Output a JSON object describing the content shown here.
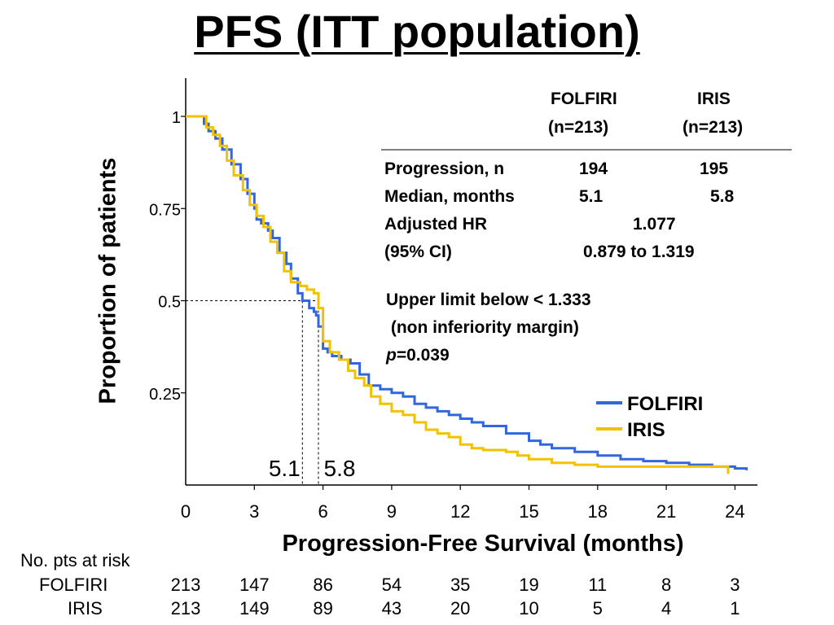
{
  "title": "PFS (ITT population)",
  "chart_data": {
    "type": "line",
    "step": true,
    "xlabel": "Progression-Free Survival  (months)",
    "ylabel": "Proportion of patients",
    "xlim": [
      0,
      25
    ],
    "ylim": [
      0,
      1.1
    ],
    "x_ticks": [
      0,
      3,
      6,
      9,
      12,
      15,
      18,
      21,
      24
    ],
    "y_ticks": [
      {
        "v": 0.25,
        "label": "0.25"
      },
      {
        "v": 0.5,
        "label": "0.5"
      },
      {
        "v": 0.75,
        "label": "0.75"
      },
      {
        "v": 1,
        "label": "1"
      }
    ],
    "origin_label": "0",
    "grid": false,
    "legend": "bottom-right",
    "series": [
      {
        "name": "FOLFIRI",
        "color": "#3366dd",
        "x": [
          0,
          0.8,
          1.0,
          1.3,
          1.6,
          2.0,
          2.4,
          2.7,
          3.0,
          3.1,
          3.3,
          3.6,
          3.8,
          4.1,
          4.4,
          4.6,
          4.9,
          5.1,
          5.4,
          5.6,
          5.7,
          5.8,
          6.0,
          6.2,
          6.4,
          6.8,
          7.2,
          7.6,
          8.0,
          8.5,
          9.0,
          9.5,
          10.0,
          10.5,
          11.0,
          11.5,
          12.0,
          12.5,
          13.0,
          14.0,
          15.0,
          15.5,
          16.0,
          17.0,
          18.0,
          19.0,
          20.0,
          21.0,
          22.0,
          23.0,
          24.0,
          24.5
        ],
        "y": [
          1.0,
          0.98,
          0.96,
          0.94,
          0.91,
          0.87,
          0.83,
          0.79,
          0.75,
          0.72,
          0.71,
          0.69,
          0.67,
          0.63,
          0.6,
          0.56,
          0.52,
          0.5,
          0.48,
          0.47,
          0.46,
          0.43,
          0.37,
          0.36,
          0.35,
          0.34,
          0.33,
          0.3,
          0.27,
          0.26,
          0.25,
          0.24,
          0.22,
          0.21,
          0.2,
          0.19,
          0.18,
          0.17,
          0.16,
          0.14,
          0.12,
          0.11,
          0.1,
          0.09,
          0.08,
          0.07,
          0.065,
          0.06,
          0.055,
          0.05,
          0.045,
          0.04
        ]
      },
      {
        "name": "IRIS",
        "color": "#f2c200",
        "x": [
          0,
          0.9,
          1.2,
          1.5,
          1.8,
          2.1,
          2.5,
          2.8,
          3.1,
          3.4,
          3.7,
          4.0,
          4.3,
          4.6,
          5.0,
          5.3,
          5.6,
          5.8,
          6.0,
          6.3,
          6.7,
          7.1,
          7.4,
          7.8,
          8.1,
          8.5,
          9.0,
          9.5,
          10.0,
          10.5,
          11.0,
          11.5,
          12.0,
          12.5,
          13.0,
          14.0,
          14.5,
          15.0,
          16.0,
          17.0,
          18.0,
          19.0,
          20.0,
          21.0,
          22.0,
          23.0,
          23.7
        ],
        "y": [
          1.0,
          0.97,
          0.95,
          0.92,
          0.88,
          0.84,
          0.8,
          0.76,
          0.73,
          0.7,
          0.66,
          0.63,
          0.58,
          0.55,
          0.54,
          0.53,
          0.52,
          0.48,
          0.39,
          0.36,
          0.34,
          0.31,
          0.29,
          0.27,
          0.24,
          0.22,
          0.2,
          0.19,
          0.17,
          0.15,
          0.14,
          0.13,
          0.11,
          0.1,
          0.095,
          0.09,
          0.08,
          0.07,
          0.06,
          0.055,
          0.05,
          0.05,
          0.05,
          0.05,
          0.05,
          0.05,
          0.03
        ]
      }
    ],
    "medians": [
      {
        "x": 5.1,
        "label": "5.1"
      },
      {
        "x": 5.8,
        "label": "5.8"
      }
    ],
    "median_y": 0.5
  },
  "stats": {
    "col1_name": "FOLFIRI",
    "col1_n": "(n=213)",
    "col2_name": "IRIS",
    "col2_n": "(n=213)",
    "rows": [
      {
        "label": "Progression, n",
        "v1": "194",
        "v2": "195"
      },
      {
        "label": "Median, months",
        "v1": "5.1",
        "v2": "5.8"
      }
    ],
    "hr_label": "Adjusted HR",
    "hr_value": "1.077",
    "ci_label": "(95% CI)",
    "ci_value": "0.879 to 1.319",
    "note_line1": "Upper limit below < 1.333",
    "note_line2": " (non inferiority margin)",
    "p_label": "p",
    "p_value": "=0.039"
  },
  "risk_table": {
    "header": "No. pts at risk",
    "columns": [
      0,
      3,
      6,
      9,
      12,
      15,
      18,
      21,
      24
    ],
    "rows": [
      {
        "label": "FOLFIRI",
        "values": [
          "213",
          "147",
          "86",
          "54",
          "35",
          "19",
          "11",
          "8",
          "3"
        ]
      },
      {
        "label": "IRIS",
        "values": [
          "213",
          "149",
          "89",
          "43",
          "20",
          "10",
          "5",
          "4",
          "1"
        ]
      }
    ]
  }
}
